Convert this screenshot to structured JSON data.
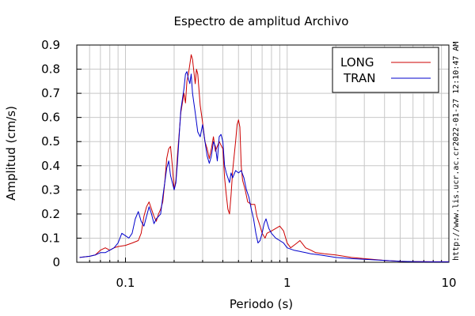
{
  "chart_data": {
    "type": "line",
    "title": "Espectro de amplitud Archivo",
    "xlabel": "Periodo (s)",
    "ylabel": "Amplitud (cm/s)",
    "x_scale": "log",
    "xlim": [
      0.05,
      10
    ],
    "ylim": [
      0,
      0.9
    ],
    "x_ticks": [
      {
        "value": 0.1,
        "label": "0.1"
      },
      {
        "value": 1,
        "label": "1"
      },
      {
        "value": 10,
        "label": "10"
      }
    ],
    "y_ticks": [
      {
        "value": 0,
        "label": "0"
      },
      {
        "value": 0.1,
        "label": "0.1"
      },
      {
        "value": 0.2,
        "label": "0.2"
      },
      {
        "value": 0.3,
        "label": "0.3"
      },
      {
        "value": 0.4,
        "label": "0.4"
      },
      {
        "value": 0.5,
        "label": "0.5"
      },
      {
        "value": 0.6,
        "label": "0.6"
      },
      {
        "value": 0.7,
        "label": "0.7"
      },
      {
        "value": 0.8,
        "label": "0.8"
      },
      {
        "value": 0.9,
        "label": "0.9"
      }
    ],
    "grid": true,
    "legend_position": "top-right",
    "series": [
      {
        "name": "LONG",
        "color": "#cc0000",
        "points": [
          [
            0.052,
            0.02
          ],
          [
            0.06,
            0.025
          ],
          [
            0.065,
            0.03
          ],
          [
            0.07,
            0.05
          ],
          [
            0.075,
            0.06
          ],
          [
            0.08,
            0.05
          ],
          [
            0.085,
            0.06
          ],
          [
            0.09,
            0.065
          ],
          [
            0.1,
            0.07
          ],
          [
            0.11,
            0.08
          ],
          [
            0.12,
            0.09
          ],
          [
            0.125,
            0.12
          ],
          [
            0.13,
            0.19
          ],
          [
            0.135,
            0.23
          ],
          [
            0.14,
            0.25
          ],
          [
            0.145,
            0.22
          ],
          [
            0.15,
            0.19
          ],
          [
            0.155,
            0.17
          ],
          [
            0.16,
            0.2
          ],
          [
            0.165,
            0.22
          ],
          [
            0.17,
            0.25
          ],
          [
            0.175,
            0.33
          ],
          [
            0.18,
            0.43
          ],
          [
            0.185,
            0.47
          ],
          [
            0.19,
            0.48
          ],
          [
            0.195,
            0.4
          ],
          [
            0.2,
            0.3
          ],
          [
            0.205,
            0.34
          ],
          [
            0.21,
            0.45
          ],
          [
            0.22,
            0.62
          ],
          [
            0.23,
            0.7
          ],
          [
            0.235,
            0.66
          ],
          [
            0.24,
            0.75
          ],
          [
            0.245,
            0.78
          ],
          [
            0.25,
            0.82
          ],
          [
            0.255,
            0.86
          ],
          [
            0.26,
            0.84
          ],
          [
            0.27,
            0.74
          ],
          [
            0.275,
            0.8
          ],
          [
            0.28,
            0.78
          ],
          [
            0.29,
            0.65
          ],
          [
            0.3,
            0.58
          ],
          [
            0.31,
            0.5
          ],
          [
            0.32,
            0.47
          ],
          [
            0.33,
            0.43
          ],
          [
            0.34,
            0.47
          ],
          [
            0.35,
            0.52
          ],
          [
            0.36,
            0.46
          ],
          [
            0.37,
            0.48
          ],
          [
            0.38,
            0.5
          ],
          [
            0.4,
            0.47
          ],
          [
            0.41,
            0.35
          ],
          [
            0.42,
            0.28
          ],
          [
            0.43,
            0.22
          ],
          [
            0.44,
            0.2
          ],
          [
            0.45,
            0.28
          ],
          [
            0.46,
            0.38
          ],
          [
            0.48,
            0.5
          ],
          [
            0.49,
            0.57
          ],
          [
            0.5,
            0.59
          ],
          [
            0.51,
            0.56
          ],
          [
            0.52,
            0.4
          ],
          [
            0.53,
            0.34
          ],
          [
            0.55,
            0.3
          ],
          [
            0.57,
            0.25
          ],
          [
            0.6,
            0.24
          ],
          [
            0.63,
            0.24
          ],
          [
            0.65,
            0.19
          ],
          [
            0.68,
            0.15
          ],
          [
            0.7,
            0.12
          ],
          [
            0.73,
            0.1
          ],
          [
            0.75,
            0.12
          ],
          [
            0.8,
            0.13
          ],
          [
            0.85,
            0.14
          ],
          [
            0.9,
            0.15
          ],
          [
            0.95,
            0.13
          ],
          [
            1.0,
            0.08
          ],
          [
            1.05,
            0.06
          ],
          [
            1.1,
            0.07
          ],
          [
            1.15,
            0.08
          ],
          [
            1.2,
            0.09
          ],
          [
            1.3,
            0.06
          ],
          [
            1.4,
            0.05
          ],
          [
            1.5,
            0.04
          ],
          [
            1.7,
            0.035
          ],
          [
            2.0,
            0.03
          ],
          [
            2.5,
            0.02
          ],
          [
            3.0,
            0.015
          ],
          [
            4.0,
            0.008
          ],
          [
            5.0,
            0.004
          ],
          [
            6.0,
            0.003
          ],
          [
            8.0,
            0.002
          ],
          [
            10.0,
            0.002
          ]
        ]
      },
      {
        "name": "TRAN",
        "color": "#0000cc",
        "points": [
          [
            0.052,
            0.02
          ],
          [
            0.06,
            0.025
          ],
          [
            0.065,
            0.03
          ],
          [
            0.07,
            0.04
          ],
          [
            0.075,
            0.04
          ],
          [
            0.08,
            0.05
          ],
          [
            0.085,
            0.06
          ],
          [
            0.09,
            0.08
          ],
          [
            0.095,
            0.12
          ],
          [
            0.1,
            0.11
          ],
          [
            0.105,
            0.1
          ],
          [
            0.11,
            0.12
          ],
          [
            0.115,
            0.18
          ],
          [
            0.12,
            0.21
          ],
          [
            0.125,
            0.17
          ],
          [
            0.13,
            0.15
          ],
          [
            0.135,
            0.19
          ],
          [
            0.14,
            0.23
          ],
          [
            0.145,
            0.2
          ],
          [
            0.15,
            0.16
          ],
          [
            0.155,
            0.18
          ],
          [
            0.16,
            0.19
          ],
          [
            0.165,
            0.2
          ],
          [
            0.17,
            0.27
          ],
          [
            0.175,
            0.33
          ],
          [
            0.18,
            0.39
          ],
          [
            0.185,
            0.42
          ],
          [
            0.19,
            0.36
          ],
          [
            0.195,
            0.33
          ],
          [
            0.2,
            0.3
          ],
          [
            0.205,
            0.33
          ],
          [
            0.21,
            0.42
          ],
          [
            0.22,
            0.63
          ],
          [
            0.23,
            0.72
          ],
          [
            0.235,
            0.78
          ],
          [
            0.24,
            0.79
          ],
          [
            0.245,
            0.76
          ],
          [
            0.25,
            0.74
          ],
          [
            0.255,
            0.78
          ],
          [
            0.26,
            0.7
          ],
          [
            0.27,
            0.62
          ],
          [
            0.28,
            0.54
          ],
          [
            0.29,
            0.52
          ],
          [
            0.3,
            0.57
          ],
          [
            0.31,
            0.5
          ],
          [
            0.32,
            0.44
          ],
          [
            0.33,
            0.41
          ],
          [
            0.34,
            0.44
          ],
          [
            0.35,
            0.5
          ],
          [
            0.36,
            0.48
          ],
          [
            0.37,
            0.42
          ],
          [
            0.38,
            0.52
          ],
          [
            0.39,
            0.53
          ],
          [
            0.4,
            0.5
          ],
          [
            0.41,
            0.4
          ],
          [
            0.42,
            0.37
          ],
          [
            0.43,
            0.35
          ],
          [
            0.44,
            0.33
          ],
          [
            0.45,
            0.37
          ],
          [
            0.46,
            0.35
          ],
          [
            0.48,
            0.38
          ],
          [
            0.5,
            0.37
          ],
          [
            0.52,
            0.38
          ],
          [
            0.54,
            0.35
          ],
          [
            0.56,
            0.3
          ],
          [
            0.58,
            0.27
          ],
          [
            0.6,
            0.22
          ],
          [
            0.62,
            0.18
          ],
          [
            0.64,
            0.12
          ],
          [
            0.66,
            0.08
          ],
          [
            0.68,
            0.09
          ],
          [
            0.7,
            0.12
          ],
          [
            0.72,
            0.16
          ],
          [
            0.74,
            0.18
          ],
          [
            0.77,
            0.14
          ],
          [
            0.8,
            0.12
          ],
          [
            0.85,
            0.1
          ],
          [
            0.9,
            0.09
          ],
          [
            0.95,
            0.08
          ],
          [
            1.0,
            0.06
          ],
          [
            1.1,
            0.05
          ],
          [
            1.2,
            0.045
          ],
          [
            1.3,
            0.04
          ],
          [
            1.4,
            0.035
          ],
          [
            1.6,
            0.03
          ],
          [
            1.8,
            0.025
          ],
          [
            2.0,
            0.02
          ],
          [
            2.5,
            0.015
          ],
          [
            3.0,
            0.012
          ],
          [
            4.0,
            0.008
          ],
          [
            5.0,
            0.004
          ],
          [
            6.0,
            0.003
          ],
          [
            8.0,
            0.002
          ],
          [
            10.0,
            0.002
          ]
        ]
      }
    ]
  },
  "side_text": {
    "url": "http://www.lis.ucr.ac.cr",
    "timestamp": "2022-01-27 12:10:47 AM"
  }
}
